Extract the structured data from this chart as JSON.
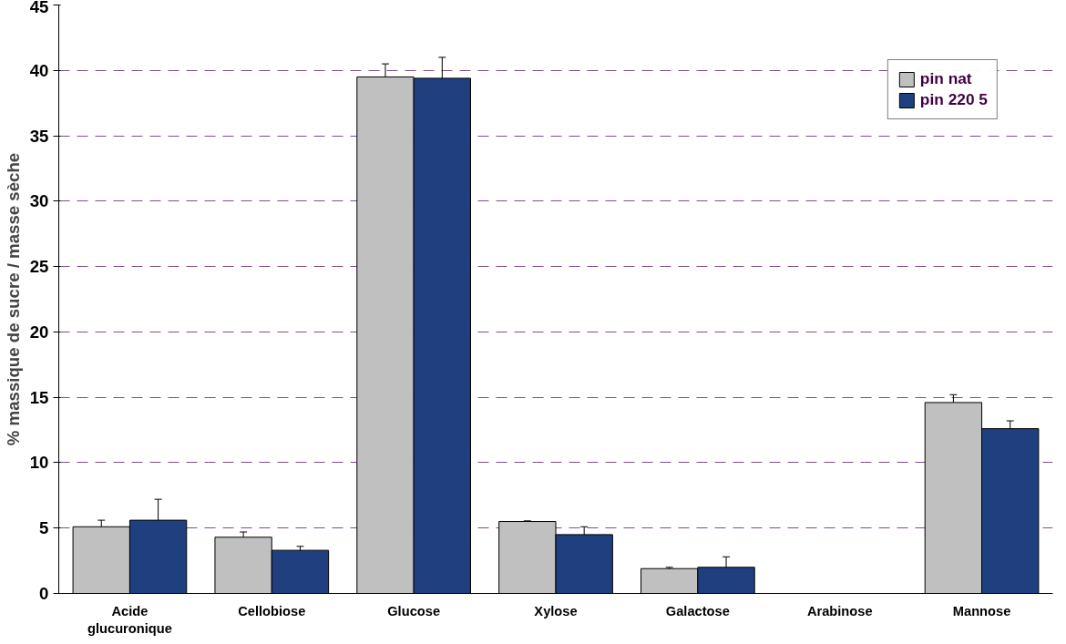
{
  "chart_data": {
    "type": "bar",
    "ylabel": "% massique de sucre / masse sèche",
    "categories": [
      "Acide glucuronique",
      "Cellobiose",
      "Glucose",
      "Xylose",
      "Galactose",
      "Arabinose",
      "Mannose"
    ],
    "series": [
      {
        "name": "pin nat",
        "color": "#c0c0c0",
        "values": [
          5.1,
          4.3,
          39.5,
          5.5,
          1.9,
          0,
          14.6
        ],
        "errors": [
          0.5,
          0.4,
          1.0,
          0.05,
          0.1,
          0,
          0.6
        ]
      },
      {
        "name": "pin 220 5",
        "color": "#1f3f7f",
        "values": [
          5.6,
          3.3,
          39.4,
          4.5,
          2.0,
          0,
          12.6
        ],
        "errors": [
          1.6,
          0.3,
          1.6,
          0.6,
          0.8,
          0,
          0.6
        ]
      }
    ],
    "ylim": [
      0,
      45
    ],
    "yticks": [
      0,
      5,
      10,
      15,
      20,
      25,
      30,
      35,
      40,
      45
    ],
    "grid": "y",
    "legend": "top right"
  }
}
